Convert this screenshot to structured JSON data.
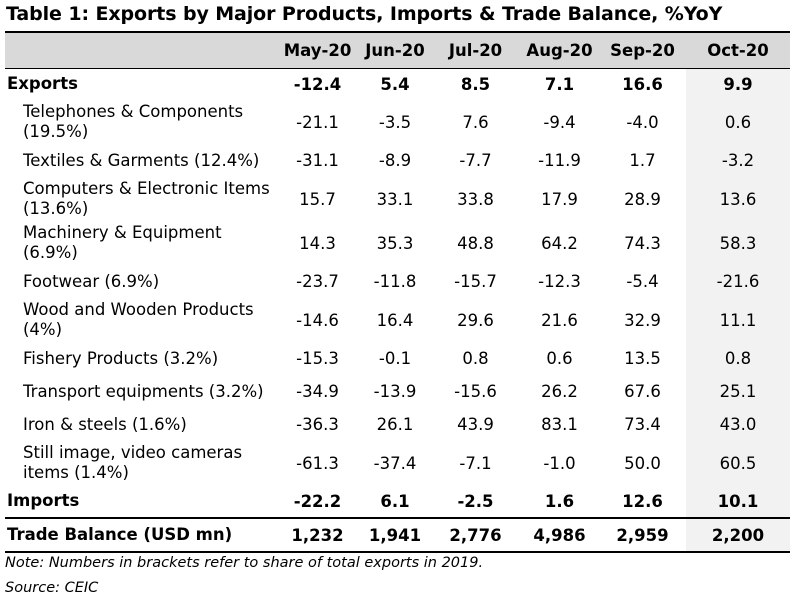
{
  "title": "Table 1: Exports by Major Products, Imports & Trade Balance, %YoY",
  "columns": [
    "May-20",
    "Jun-20",
    "Jul-20",
    "Aug-20",
    "Sep-20",
    "Oct-20"
  ],
  "rows": [
    {
      "label": "Exports",
      "values": [
        "-12.4",
        "5.4",
        "8.5",
        "7.1",
        "16.6",
        "9.9"
      ]
    },
    {
      "label": "Telephones & Components (19.5%)",
      "values": [
        "-21.1",
        "-3.5",
        "7.6",
        "-9.4",
        "-4.0",
        "0.6"
      ]
    },
    {
      "label": "Textiles & Garments (12.4%)",
      "values": [
        "-31.1",
        "-8.9",
        "-7.7",
        "-11.9",
        "1.7",
        "-3.2"
      ]
    },
    {
      "label": "Computers & Electronic Items (13.6%)",
      "values": [
        "15.7",
        "33.1",
        "33.8",
        "17.9",
        "28.9",
        "13.6"
      ]
    },
    {
      "label": "Machinery & Equipment (6.9%)",
      "values": [
        "14.3",
        "35.3",
        "48.8",
        "64.2",
        "74.3",
        "58.3"
      ]
    },
    {
      "label": "Footwear (6.9%)",
      "values": [
        "-23.7",
        "-11.8",
        "-15.7",
        "-12.3",
        "-5.4",
        "-21.6"
      ]
    },
    {
      "label": "Wood and Wooden Products (4%)",
      "values": [
        "-14.6",
        "16.4",
        "29.6",
        "21.6",
        "32.9",
        "11.1"
      ]
    },
    {
      "label": "Fishery Products (3.2%)",
      "values": [
        "-15.3",
        "-0.1",
        "0.8",
        "0.6",
        "13.5",
        "0.8"
      ]
    },
    {
      "label": "Transport equipments (3.2%)",
      "values": [
        "-34.9",
        "-13.9",
        "-15.6",
        "26.2",
        "67.6",
        "25.1"
      ]
    },
    {
      "label": "Iron & steels (1.6%)",
      "values": [
        "-36.3",
        "26.1",
        "43.9",
        "83.1",
        "73.4",
        "43.0"
      ]
    },
    {
      "label": "Still image, video cameras items (1.4%)",
      "values": [
        "-61.3",
        "-37.4",
        "-7.1",
        "-1.0",
        "50.0",
        "60.5"
      ]
    },
    {
      "label": "Imports",
      "values": [
        "-22.2",
        "6.1",
        "-2.5",
        "1.6",
        "12.6",
        "10.1"
      ]
    },
    {
      "label": "Trade Balance (USD mn)",
      "values": [
        "1,232",
        "1,941",
        "2,776",
        "4,986",
        "2,959",
        "2,200"
      ]
    }
  ],
  "note": "Note: Numbers in brackets refer to share of total exports in 2019.",
  "source": "Source: CEIC"
}
